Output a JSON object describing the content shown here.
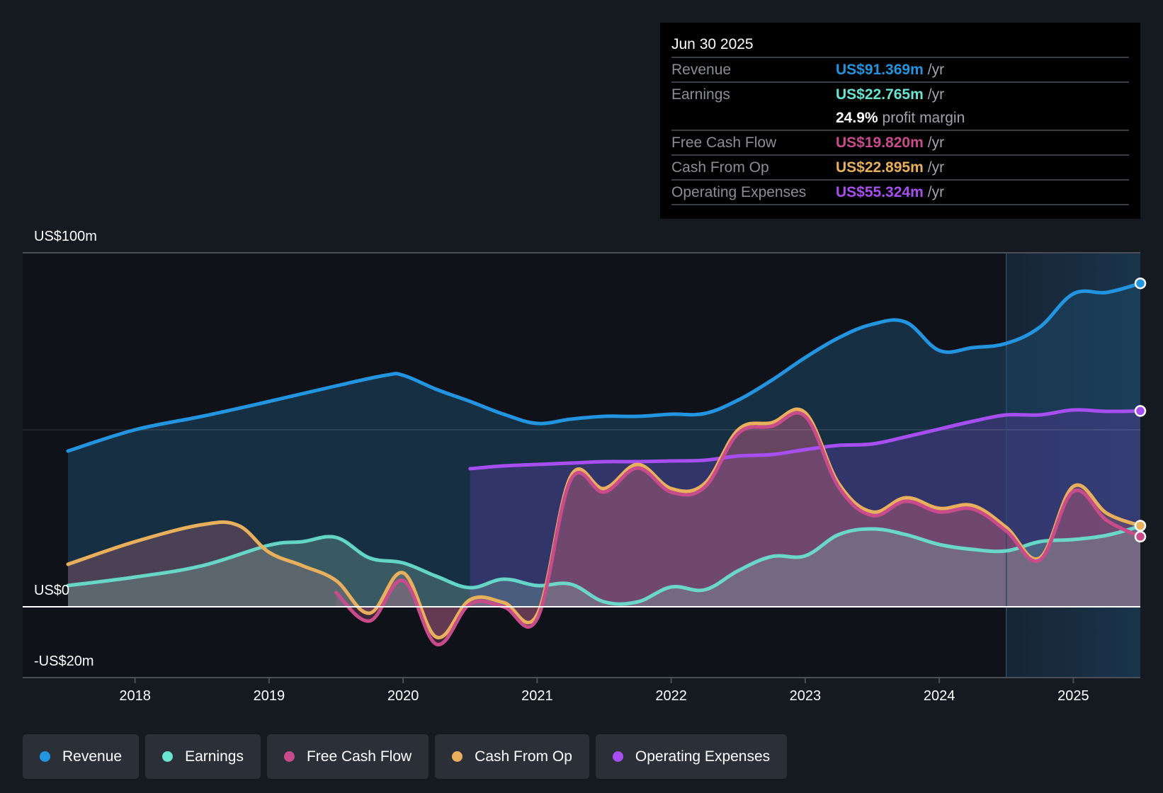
{
  "colors": {
    "revenue": "#2394e0",
    "earnings": "#6ae4d2",
    "free_cash_flow": "#c84c8c",
    "cash_from_op": "#e8b05c",
    "operating_expenses": "#a64ef0"
  },
  "tooltip": {
    "date": "Jun 30 2025",
    "rows": [
      {
        "label": "Revenue",
        "value": "US$91.369m",
        "unit": "/yr",
        "color": "#2394e0"
      },
      {
        "label": "Earnings",
        "value": "US$22.765m",
        "unit": "/yr",
        "color": "#6ae4d2"
      },
      {
        "label": "",
        "value": "24.9%",
        "unit": "profit margin",
        "color": "#ffffff"
      },
      {
        "label": "Free Cash Flow",
        "value": "US$19.820m",
        "unit": "/yr",
        "color": "#c84c8c"
      },
      {
        "label": "Cash From Op",
        "value": "US$22.895m",
        "unit": "/yr",
        "color": "#e8b05c"
      },
      {
        "label": "Operating Expenses",
        "value": "US$55.324m",
        "unit": "/yr",
        "color": "#a64ef0"
      }
    ]
  },
  "legend": [
    {
      "label": "Revenue",
      "color": "#2394e0"
    },
    {
      "label": "Earnings",
      "color": "#6ae4d2"
    },
    {
      "label": "Free Cash Flow",
      "color": "#c84c8c"
    },
    {
      "label": "Cash From Op",
      "color": "#e8b05c"
    },
    {
      "label": "Operating Expenses",
      "color": "#a64ef0"
    }
  ],
  "chart_data": {
    "type": "area",
    "title": "",
    "xlabel": "",
    "ylabel": "",
    "x_range": [
      2017.5,
      2025.5
    ],
    "ylim": [
      -20,
      100
    ],
    "y_tick_labels": [
      {
        "value": 100,
        "label": "US$100m"
      },
      {
        "value": 0,
        "label": "US$0"
      },
      {
        "value": -20,
        "label": "-US$20m"
      }
    ],
    "x_ticks": [
      2018,
      2019,
      2020,
      2021,
      2022,
      2023,
      2024,
      2025
    ],
    "x_tick_labels": [
      "2018",
      "2019",
      "2020",
      "2021",
      "2022",
      "2023",
      "2024",
      "2025"
    ],
    "forecast_highlight_start": 2024.5,
    "series": [
      {
        "name": "Revenue",
        "key": "revenue",
        "x": [
          2017.5,
          2018,
          2018.5,
          2019,
          2019.5,
          2019.87,
          2020,
          2020.25,
          2020.5,
          2020.75,
          2021,
          2021.25,
          2021.5,
          2021.75,
          2022,
          2022.25,
          2022.5,
          2022.75,
          2023,
          2023.25,
          2023.5,
          2023.75,
          2024,
          2024.25,
          2024.5,
          2024.75,
          2025,
          2025.25,
          2025.5
        ],
        "values": [
          44,
          50,
          53.8,
          58,
          62.4,
          65.4,
          65.4,
          61.4,
          58,
          54.4,
          51.8,
          53,
          53.8,
          53.8,
          54.4,
          54.6,
          58.4,
          64,
          70.4,
          76,
          79.8,
          80.4,
          72.4,
          73.2,
          74.4,
          79,
          88.4,
          88.8,
          91.369
        ]
      },
      {
        "name": "Earnings",
        "key": "earnings",
        "x": [
          2017.5,
          2018,
          2018.5,
          2019,
          2019.25,
          2019.5,
          2019.75,
          2020,
          2020.25,
          2020.5,
          2020.75,
          2021,
          2021.25,
          2021.5,
          2021.75,
          2022,
          2022.25,
          2022.5,
          2022.75,
          2023,
          2023.25,
          2023.5,
          2023.75,
          2024,
          2024.25,
          2024.5,
          2024.75,
          2025,
          2025.25,
          2025.5
        ],
        "values": [
          6,
          8.4,
          11.6,
          17.4,
          18.4,
          19.6,
          13.8,
          12.4,
          8.6,
          5.4,
          7.8,
          6,
          6.4,
          1.4,
          1.4,
          5.6,
          4.8,
          10.2,
          14.2,
          14.4,
          20.4,
          22,
          20.4,
          17.6,
          16.2,
          15.8,
          18.4,
          19,
          20.2,
          22.765
        ]
      },
      {
        "name": "Free Cash Flow",
        "key": "free_cash_flow",
        "x": [
          2019.5,
          2019.75,
          2020,
          2020.25,
          2020.5,
          2020.75,
          2021,
          2021.25,
          2021.5,
          2021.75,
          2022,
          2022.25,
          2022.5,
          2022.75,
          2023,
          2023.25,
          2023.5,
          2023.75,
          2024,
          2024.25,
          2024.5,
          2024.75,
          2025,
          2025.25,
          2025.5
        ],
        "values": [
          4,
          -4,
          7.4,
          -10.6,
          0.8,
          0,
          -3.4,
          35.8,
          32.4,
          39.2,
          32.4,
          33.8,
          49,
          51,
          53.8,
          33.8,
          25.8,
          29.8,
          26.8,
          27.6,
          21.4,
          13.2,
          32.6,
          24.4,
          19.82
        ]
      },
      {
        "name": "Cash From Op",
        "key": "cash_from_op",
        "x": [
          2017.5,
          2018,
          2018.5,
          2018.77,
          2019,
          2019.25,
          2019.5,
          2019.75,
          2020,
          2020.25,
          2020.5,
          2020.75,
          2021,
          2021.25,
          2021.5,
          2021.75,
          2022,
          2022.25,
          2022.5,
          2022.75,
          2023,
          2023.25,
          2023.5,
          2023.75,
          2024,
          2024.25,
          2024.5,
          2024.75,
          2025,
          2025.25,
          2025.5
        ],
        "values": [
          12,
          18.4,
          23.2,
          23,
          15.4,
          11.6,
          7.4,
          -1.8,
          9.6,
          -8.6,
          2,
          1.2,
          -2.2,
          36.8,
          33.4,
          40.2,
          33.4,
          34.8,
          50,
          52,
          54.8,
          34.8,
          26.8,
          30.8,
          27.8,
          28.6,
          22.4,
          13.8,
          34,
          26.4,
          22.895
        ]
      },
      {
        "name": "Operating Expenses",
        "key": "operating_expenses",
        "x": [
          2020.5,
          2020.75,
          2021,
          2021.25,
          2021.5,
          2021.75,
          2022,
          2022.25,
          2022.5,
          2022.75,
          2023,
          2023.25,
          2023.5,
          2023.75,
          2024,
          2024.25,
          2024.5,
          2024.75,
          2025,
          2025.25,
          2025.5
        ],
        "values": [
          39,
          39.8,
          40.2,
          40.6,
          41,
          41,
          41.2,
          41.4,
          42.6,
          43,
          44.4,
          45.6,
          46,
          48,
          50.2,
          52.4,
          54.2,
          54.2,
          55.6,
          55.2,
          55.324
        ]
      }
    ]
  }
}
